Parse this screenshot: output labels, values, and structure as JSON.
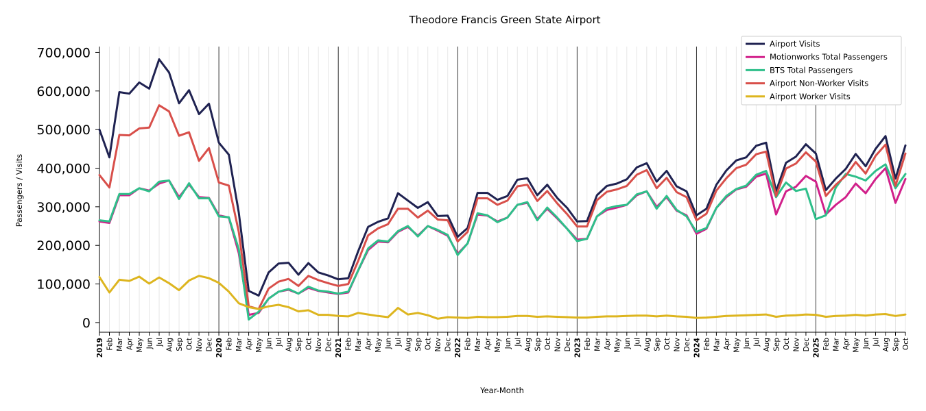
{
  "chart_data": {
    "type": "line",
    "title": "Theodore Francis Green State Airport",
    "xlabel": "Year-Month",
    "ylabel": "Passengers / Visits",
    "ylim": [
      -25000,
      715000
    ],
    "yticks": [
      0,
      100000,
      200000,
      300000,
      400000,
      500000,
      600000,
      700000
    ],
    "ytick_labels": [
      "0",
      "100,000",
      "200,000",
      "300,000",
      "400,000",
      "500,000",
      "600,000",
      "700,000"
    ],
    "start": "2019-01",
    "month_labels": [
      "Jan",
      "Feb",
      "Mar",
      "Apr",
      "May",
      "Jun",
      "Jul",
      "Aug",
      "Sep",
      "Oct",
      "Nov",
      "Dec"
    ],
    "legend_position": "top-right",
    "grid": "vertical minor lines per month, major lines per year",
    "series": [
      {
        "name": "Airport Visits",
        "color": "#1f2251",
        "values": [
          500000,
          428000,
          597000,
          593000,
          622000,
          606000,
          682000,
          648000,
          568000,
          602000,
          540000,
          567000,
          466000,
          435000,
          285000,
          82000,
          70000,
          130000,
          153000,
          155000,
          124000,
          154000,
          130000,
          122000,
          112000,
          115000,
          185000,
          248000,
          261000,
          270000,
          335000,
          316000,
          297000,
          312000,
          276000,
          277000,
          222000,
          245000,
          336000,
          336000,
          318000,
          328000,
          370000,
          374000,
          330000,
          357000,
          323000,
          297000,
          262000,
          263000,
          330000,
          354000,
          360000,
          371000,
          402000,
          413000,
          365000,
          393000,
          353000,
          340000,
          278000,
          295000,
          357000,
          394000,
          420000,
          428000,
          458000,
          466000,
          340000,
          414000,
          430000,
          462000,
          438000,
          343000,
          373000,
          398000,
          437000,
          405000,
          450000,
          483000,
          373000,
          459000
        ]
      },
      {
        "name": "Motionworks Total Passengers",
        "color": "#d1208a",
        "values": [
          262000,
          258000,
          330000,
          330000,
          348000,
          342000,
          360000,
          368000,
          325000,
          358000,
          325000,
          323000,
          278000,
          272000,
          180000,
          20000,
          25000,
          62000,
          80000,
          85000,
          75000,
          90000,
          82000,
          78000,
          74000,
          78000,
          135000,
          188000,
          210000,
          208000,
          235000,
          248000,
          225000,
          250000,
          238000,
          225000,
          178000,
          205000,
          280000,
          277000,
          262000,
          272000,
          305000,
          310000,
          268000,
          295000,
          270000,
          243000,
          215000,
          217000,
          275000,
          292000,
          298000,
          305000,
          330000,
          340000,
          300000,
          325000,
          290000,
          278000,
          230000,
          243000,
          297000,
          325000,
          345000,
          352000,
          378000,
          386000,
          280000,
          340000,
          352000,
          380000,
          365000,
          280000,
          305000,
          325000,
          360000,
          335000,
          372000,
          400000,
          310000,
          372000
        ]
      },
      {
        "name": "BTS Total Passengers",
        "color": "#2ebf8a",
        "values": [
          265000,
          262000,
          333000,
          333000,
          348000,
          340000,
          365000,
          368000,
          320000,
          361000,
          322000,
          322000,
          275000,
          273000,
          190000,
          8000,
          28000,
          62000,
          80000,
          87000,
          75000,
          93000,
          83000,
          80000,
          75000,
          80000,
          135000,
          192000,
          213000,
          210000,
          237000,
          250000,
          223000,
          250000,
          240000,
          227000,
          175000,
          205000,
          283000,
          278000,
          260000,
          272000,
          305000,
          312000,
          265000,
          298000,
          272000,
          243000,
          211000,
          217000,
          275000,
          296000,
          302000,
          305000,
          332000,
          340000,
          295000,
          328000,
          292000,
          275000,
          235000,
          245000,
          297000,
          328000,
          346000,
          355000,
          383000,
          393000,
          325000,
          363000,
          341000,
          347000,
          268000,
          278000,
          350000,
          385000,
          378000,
          368000,
          393000,
          410000,
          348000,
          385000
        ]
      },
      {
        "name": "Airport Non-Worker Visits",
        "color": "#d84f4a",
        "values": [
          382000,
          350000,
          486000,
          485000,
          503000,
          505000,
          563000,
          547000,
          484000,
          493000,
          419000,
          452000,
          363000,
          355000,
          235000,
          42000,
          35000,
          88000,
          106000,
          113000,
          95000,
          121000,
          110000,
          102000,
          95000,
          100000,
          160000,
          226000,
          244000,
          255000,
          295000,
          295000,
          272000,
          290000,
          267000,
          265000,
          210000,
          235000,
          322000,
          322000,
          305000,
          316000,
          353000,
          357000,
          315000,
          341000,
          309000,
          281000,
          249000,
          249000,
          317000,
          339000,
          345000,
          354000,
          383000,
          395000,
          348000,
          375000,
          338000,
          325000,
          265000,
          282000,
          342000,
          374000,
          400000,
          409000,
          436000,
          443000,
          328000,
          399000,
          412000,
          441000,
          417000,
          328000,
          357000,
          380000,
          416000,
          386000,
          432000,
          461000,
          354000,
          438000
        ]
      },
      {
        "name": "Airport Worker Visits",
        "color": "#ddb51f",
        "values": [
          118000,
          78000,
          111000,
          108000,
          119000,
          101000,
          117000,
          102000,
          84000,
          109000,
          121000,
          115000,
          103000,
          80000,
          50000,
          40000,
          35000,
          42000,
          46000,
          40000,
          29000,
          32000,
          20000,
          20000,
          17000,
          16000,
          25000,
          21000,
          17000,
          14000,
          38000,
          21000,
          25000,
          19000,
          10000,
          14000,
          13000,
          12000,
          15000,
          14000,
          14000,
          15000,
          17000,
          17000,
          15000,
          16000,
          15000,
          14000,
          13000,
          13000,
          15000,
          16000,
          16000,
          17000,
          18000,
          18000,
          16000,
          18000,
          16000,
          15000,
          12000,
          13000,
          15000,
          17000,
          18000,
          19000,
          20000,
          21000,
          15000,
          18000,
          19000,
          21000,
          20000,
          15000,
          17000,
          18000,
          20000,
          18000,
          21000,
          22000,
          17000,
          21000
        ]
      }
    ]
  }
}
